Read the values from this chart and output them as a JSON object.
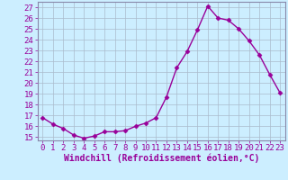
{
  "x": [
    0,
    1,
    2,
    3,
    4,
    5,
    6,
    7,
    8,
    9,
    10,
    11,
    12,
    13,
    14,
    15,
    16,
    17,
    18,
    19,
    20,
    21,
    22,
    23
  ],
  "y": [
    16.8,
    16.2,
    15.8,
    15.2,
    14.9,
    15.1,
    15.5,
    15.5,
    15.6,
    16.0,
    16.3,
    16.8,
    18.7,
    21.4,
    22.9,
    24.9,
    27.1,
    26.0,
    25.8,
    25.0,
    23.9,
    22.6,
    20.8,
    19.1
  ],
  "line_color": "#990099",
  "marker": "D",
  "marker_size": 2.5,
  "linewidth": 1.0,
  "xlabel": "Windchill (Refroidissement éolien,°C)",
  "xlabel_fontsize": 7,
  "ylim": [
    14.7,
    27.5
  ],
  "yticks": [
    15,
    16,
    17,
    18,
    19,
    20,
    21,
    22,
    23,
    24,
    25,
    26,
    27
  ],
  "xlim": [
    -0.5,
    23.5
  ],
  "xticks": [
    0,
    1,
    2,
    3,
    4,
    5,
    6,
    7,
    8,
    9,
    10,
    11,
    12,
    13,
    14,
    15,
    16,
    17,
    18,
    19,
    20,
    21,
    22,
    23
  ],
  "bg_color": "#cceeff",
  "grid_color": "#aabbcc",
  "tick_color": "#990099",
  "tick_fontsize": 6.5,
  "spine_color": "#8888aa"
}
